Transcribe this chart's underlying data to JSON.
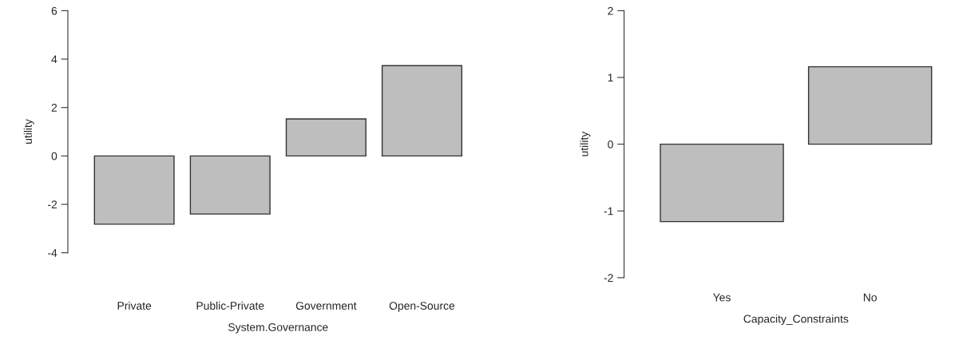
{
  "chart_data": [
    {
      "type": "bar",
      "xlabel": "System.Governance",
      "ylabel": "utility",
      "categories": [
        "Private",
        "Public-Private",
        "Government",
        "Open-Source"
      ],
      "values": [
        -2.82,
        -2.4,
        1.53,
        3.73
      ],
      "color": "#bebebe",
      "ylim": [
        -4,
        6
      ],
      "yticks": [
        -4,
        -2,
        0,
        2,
        4,
        6
      ],
      "grid": false,
      "legend": false
    },
    {
      "type": "bar",
      "xlabel": "Capacity_Constraints",
      "ylabel": "utility",
      "categories": [
        "Yes",
        "No"
      ],
      "values": [
        -1.16,
        1.16
      ],
      "color": "#bebebe",
      "ylim": [
        -2,
        2
      ],
      "yticks": [
        -2,
        -1,
        0,
        1,
        2
      ],
      "grid": false,
      "legend": false
    }
  ]
}
